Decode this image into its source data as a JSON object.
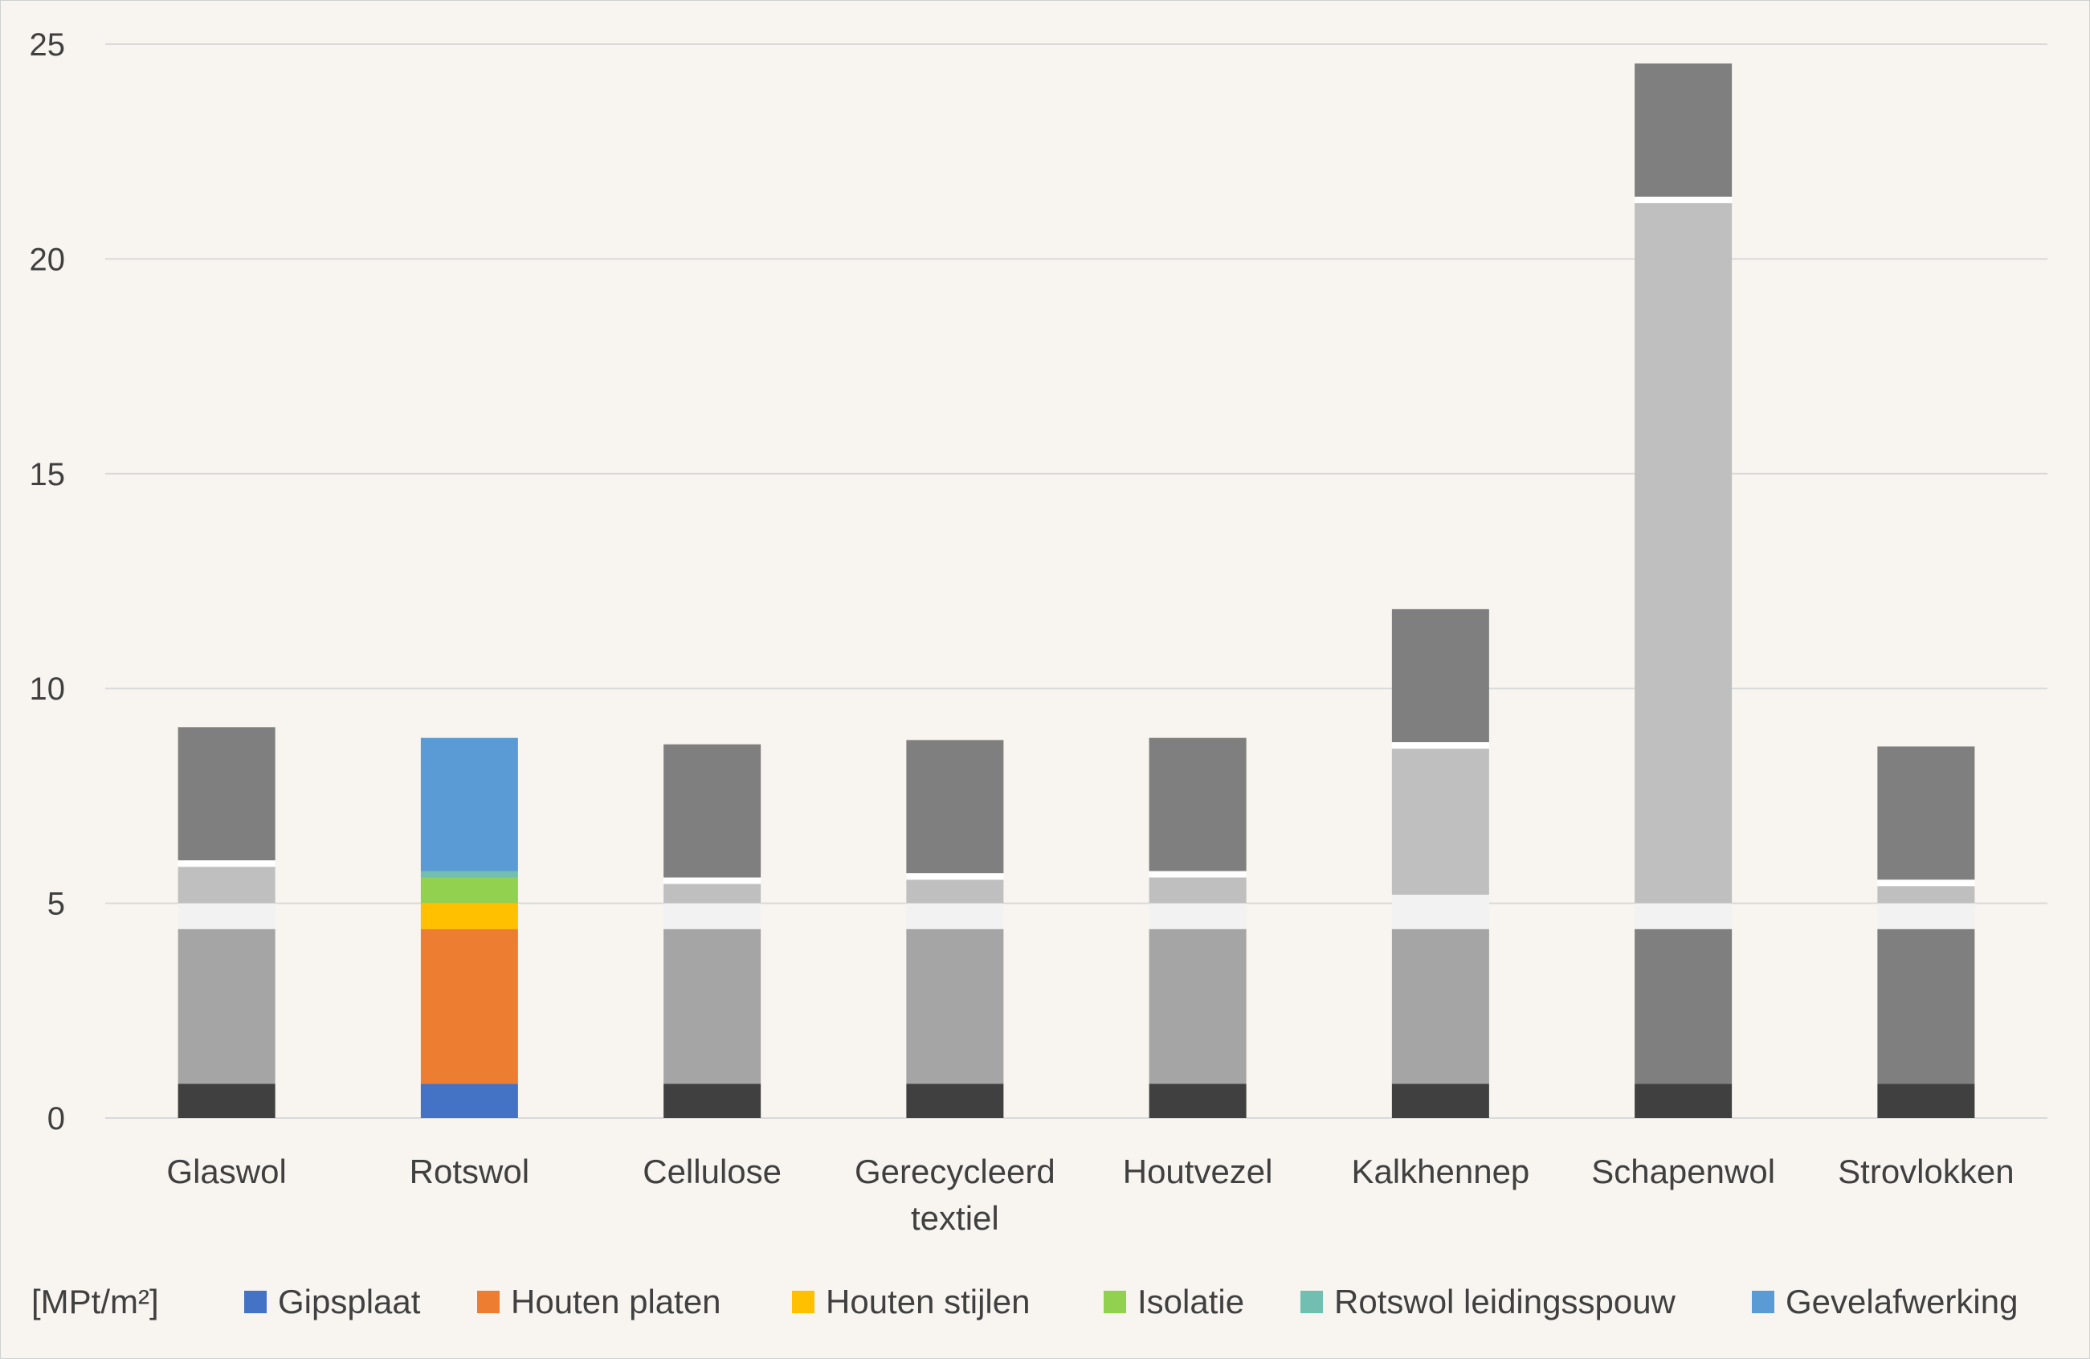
{
  "chart_data": {
    "type": "bar",
    "stacked": true,
    "title": "",
    "xlabel": "",
    "ylabel": "",
    "unit_label": "[MPt/m²]",
    "ylim": [
      0,
      25
    ],
    "yticks": [
      0,
      5,
      10,
      15,
      20,
      25
    ],
    "grid": true,
    "legend_position": "bottom",
    "categories": [
      "Glaswol",
      "Rotswol",
      "Cellulose",
      "Gerecycleerd textiel",
      "Houtvezel",
      "Kalkhennep",
      "Schapenwol",
      "Strovlokken"
    ],
    "series": [
      {
        "name": "Gipsplaat",
        "color": "#4472c4",
        "display_colors": [
          "#404040",
          "#4472c4",
          "#404040",
          "#404040",
          "#404040",
          "#404040",
          "#404040",
          "#404040"
        ],
        "values": [
          0.8,
          0.8,
          0.8,
          0.8,
          0.8,
          0.8,
          0.8,
          0.8
        ]
      },
      {
        "name": "Houten platen",
        "color": "#ed7d31",
        "display_colors": [
          "#a5a5a5",
          "#ed7d31",
          "#a5a5a5",
          "#a5a5a5",
          "#a5a5a5",
          "#a5a5a5",
          "#7f7f7f",
          "#7f7f7f"
        ],
        "values": [
          3.6,
          3.6,
          3.6,
          3.6,
          3.6,
          3.6,
          3.6,
          3.6
        ]
      },
      {
        "name": "Houten stijlen",
        "color": "#ffc000",
        "display_colors": [
          "#f2f2f2",
          "#ffc000",
          "#f2f2f2",
          "#f2f2f2",
          "#f2f2f2",
          "#f2f2f2",
          "#f2f2f2",
          "#f2f2f2"
        ],
        "values": [
          0.6,
          0.6,
          0.6,
          0.6,
          0.6,
          0.8,
          0.6,
          0.6
        ]
      },
      {
        "name": "Isolatie",
        "color": "#92d050",
        "display_colors": [
          "#bfbfbf",
          "#92d050",
          "#bfbfbf",
          "#bfbfbf",
          "#bfbfbf",
          "#bfbfbf",
          "#bfbfbf",
          "#bfbfbf"
        ],
        "values": [
          0.85,
          0.6,
          0.45,
          0.55,
          0.6,
          3.4,
          16.3,
          0.4
        ]
      },
      {
        "name": "Rotswol leidingsspouw",
        "color": "#70bfb0",
        "display_colors": [
          "#ffffff",
          "#70bfb0",
          "#ffffff",
          "#ffffff",
          "#ffffff",
          "#ffffff",
          "#ffffff",
          "#ffffff"
        ],
        "values": [
          0.15,
          0.15,
          0.15,
          0.15,
          0.15,
          0.15,
          0.15,
          0.15
        ]
      },
      {
        "name": "Gevelafwerking",
        "color": "#5b9bd5",
        "display_colors": [
          "#7f7f7f",
          "#5b9bd5",
          "#7f7f7f",
          "#7f7f7f",
          "#7f7f7f",
          "#7f7f7f",
          "#7f7f7f",
          "#7f7f7f"
        ],
        "values": [
          3.1,
          3.1,
          3.1,
          3.1,
          3.1,
          3.1,
          3.1,
          3.1
        ]
      }
    ]
  }
}
